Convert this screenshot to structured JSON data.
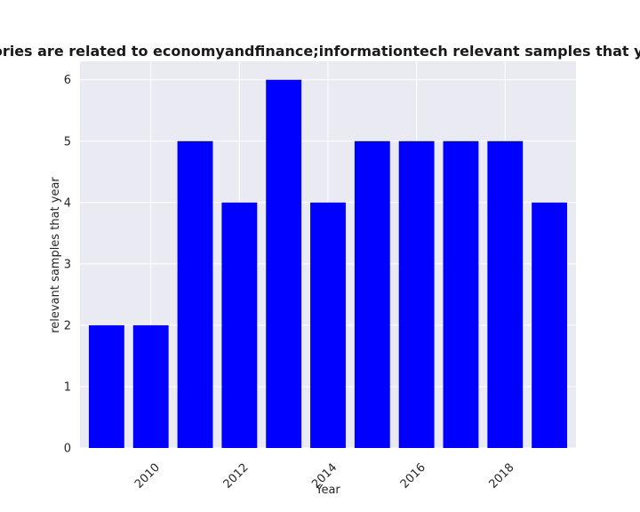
{
  "chart_data": {
    "type": "bar",
    "title": "Number of stories are related to economyandfinance;informationtech relevant samples that year in privacy p",
    "xlabel": "Year",
    "ylabel": "relevant samples that year",
    "x": [
      2009,
      2010,
      2011,
      2012,
      2013,
      2014,
      2015,
      2016,
      2017,
      2018,
      2019
    ],
    "values": [
      2,
      2,
      5,
      4,
      6,
      4,
      5,
      5,
      5,
      5,
      4
    ],
    "xlim": [
      2008.4,
      2019.6
    ],
    "ylim": [
      0,
      6.3
    ],
    "x_ticks": [
      2010,
      2012,
      2014,
      2016,
      2018
    ],
    "y_ticks": [
      0,
      1,
      2,
      3,
      4,
      5,
      6
    ],
    "grid": true,
    "bar_color": "#0000ff",
    "background_color": "#eaeaf2",
    "grid_color": "#ffffff"
  }
}
